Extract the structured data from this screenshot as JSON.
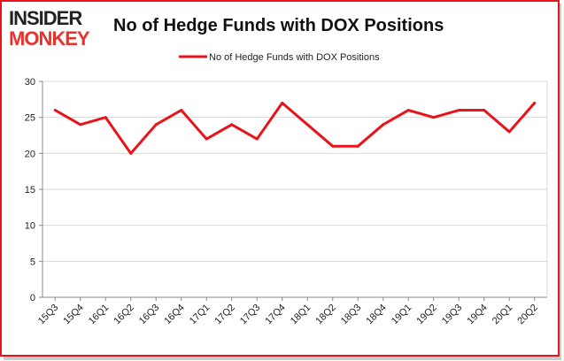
{
  "logo": {
    "line1": "INSIDER",
    "line2": "MONKEY",
    "color_dark": "#222222",
    "color_red": "#e8322b"
  },
  "chart_data": {
    "type": "line",
    "title": "No of Hedge Funds with DOX Positions",
    "xlabel": "",
    "ylabel": "",
    "categories": [
      "15Q3",
      "15Q4",
      "16Q1",
      "16Q2",
      "16Q3",
      "16Q4",
      "17Q1",
      "17Q2",
      "17Q3",
      "17Q4",
      "18Q1",
      "18Q2",
      "18Q3",
      "18Q4",
      "19Q1",
      "19Q2",
      "19Q3",
      "19Q4",
      "20Q1",
      "20Q2"
    ],
    "series": [
      {
        "name": "No of Hedge Funds with DOX Positions",
        "values": [
          26,
          24,
          25,
          20,
          24,
          26,
          22,
          24,
          22,
          27,
          24,
          21,
          21,
          24,
          26,
          25,
          26,
          26,
          23,
          27
        ],
        "color": "#e8141b"
      }
    ],
    "ylim": [
      0,
      30
    ],
    "yticks": [
      0,
      5,
      10,
      15,
      20,
      25,
      30
    ],
    "grid": true,
    "legend_position": "top"
  },
  "colors": {
    "border": "#e8141b",
    "grid": "#d9d9d9",
    "axis": "#888888"
  }
}
